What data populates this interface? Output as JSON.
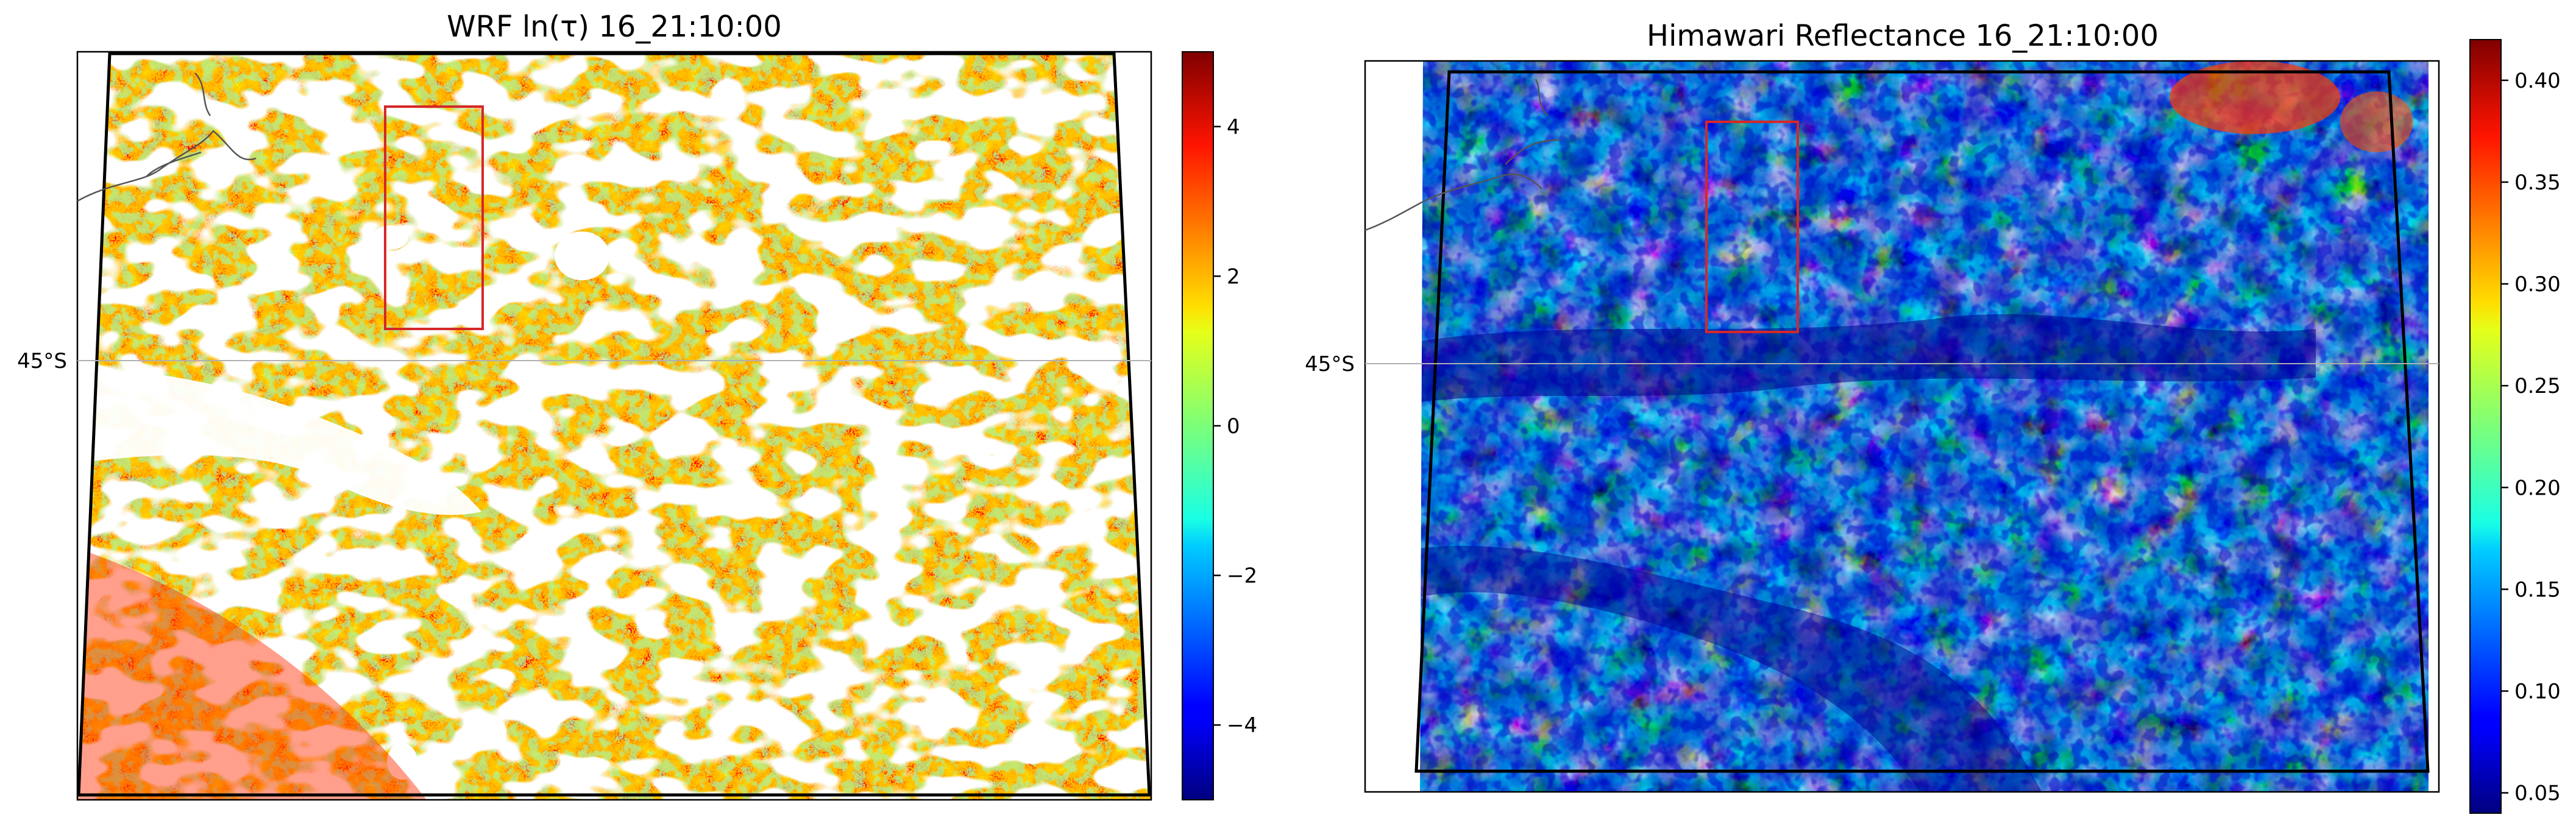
{
  "chart_data": [
    {
      "type": "heatmap",
      "title": "WRF ln(τ) 16_21:10:00",
      "colormap": "jet",
      "colorbar": {
        "range": [
          -5,
          5
        ],
        "ticks": [
          4,
          2,
          0,
          -2,
          -4
        ],
        "tick_labels": [
          "4",
          "2",
          "0",
          "−2",
          "−4"
        ]
      },
      "latitude_label": "45°S",
      "features": [
        "coastline",
        "latitude gridline",
        "domain boundary",
        "red box"
      ]
    },
    {
      "type": "heatmap",
      "title": "Himawari Reflectance 16_21:10:00",
      "colormap": "jet",
      "colorbar": {
        "range": [
          0.04,
          0.42
        ],
        "ticks": [
          0.4,
          0.35,
          0.3,
          0.25,
          0.2,
          0.15,
          0.1,
          0.05
        ],
        "tick_labels": [
          "0.40",
          "0.35",
          "0.30",
          "0.25",
          "0.20",
          "0.15",
          "0.10",
          "0.05"
        ]
      },
      "latitude_label": "45°S",
      "features": [
        "coastline",
        "latitude gridline",
        "domain boundary",
        "red box"
      ]
    }
  ],
  "colors": {
    "box": "#d62728",
    "gridline": "#b0b0b0",
    "coast": "#555555",
    "boundary": "#000000"
  }
}
